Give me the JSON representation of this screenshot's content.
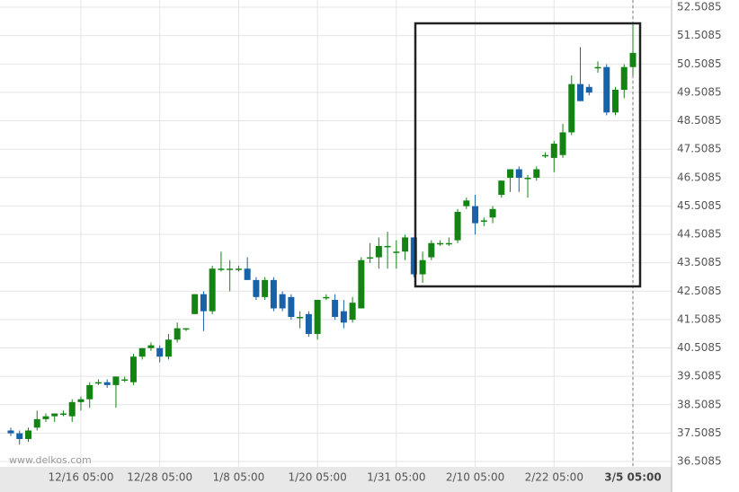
{
  "chart_data": {
    "type": "candlestick",
    "watermark": "www.delkos.com",
    "categories": [
      null,
      null,
      null,
      null,
      null,
      null,
      null,
      null,
      "12/16 05:00",
      null,
      null,
      null,
      null,
      null,
      null,
      null,
      null,
      "12/28 05:00",
      null,
      null,
      null,
      null,
      null,
      null,
      null,
      null,
      "1/8 05:00",
      null,
      null,
      null,
      null,
      null,
      null,
      null,
      null,
      "1/20 05:00",
      null,
      null,
      null,
      null,
      null,
      null,
      null,
      null,
      "1/31 05:00",
      null,
      null,
      null,
      null,
      null,
      null,
      null,
      null,
      "2/10 05:00",
      null,
      null,
      null,
      null,
      null,
      null,
      null,
      null,
      "2/22 05:00",
      null,
      null,
      null,
      null,
      null,
      null,
      null,
      null,
      "3/5 05:00"
    ],
    "open": [
      37.6,
      37.5,
      37.3,
      37.7,
      38.0,
      38.1,
      38.2,
      38.1,
      38.6,
      38.7,
      39.3,
      39.3,
      39.2,
      39.4,
      39.3,
      40.2,
      40.5,
      40.5,
      40.2,
      40.8,
      41.2,
      41.7,
      42.4,
      41.8,
      43.3,
      43.3,
      43.3,
      43.3,
      42.9,
      42.3,
      42.9,
      42.4,
      42.3,
      41.6,
      41.7,
      41.0,
      42.3,
      42.2,
      41.8,
      41.5,
      41.9,
      43.7,
      43.7,
      44.1,
      43.9,
      43.9,
      44.4,
      43.1,
      43.7,
      44.2,
      44.2,
      44.3,
      45.5,
      45.5,
      45.0,
      45.1,
      45.9,
      46.5,
      46.8,
      46.5,
      46.5,
      47.3,
      47.2,
      47.3,
      48.1,
      49.8,
      49.7,
      50.4,
      50.4,
      48.8,
      49.6,
      50.4
    ],
    "high": [
      37.7,
      37.6,
      37.7,
      38.3,
      38.2,
      38.2,
      38.3,
      38.7,
      38.8,
      39.3,
      39.4,
      39.4,
      39.5,
      39.5,
      40.3,
      40.5,
      40.7,
      40.6,
      41.0,
      41.4,
      41.2,
      42.4,
      42.5,
      43.4,
      43.9,
      43.6,
      43.4,
      43.7,
      43.0,
      43.0,
      43.0,
      42.5,
      42.4,
      41.8,
      41.8,
      42.2,
      42.4,
      42.4,
      42.2,
      42.3,
      43.7,
      44.2,
      44.4,
      44.6,
      44.3,
      44.5,
      44.4,
      43.9,
      44.3,
      44.3,
      44.4,
      45.4,
      45.8,
      45.9,
      45.1,
      45.5,
      46.4,
      46.8,
      46.9,
      46.6,
      46.9,
      47.4,
      47.8,
      48.4,
      50.1,
      51.1,
      49.8,
      50.6,
      50.5,
      49.7,
      50.5,
      51.9
    ],
    "low": [
      37.4,
      37.1,
      37.2,
      37.6,
      37.9,
      37.9,
      38.1,
      37.9,
      38.3,
      38.4,
      39.2,
      39.1,
      38.4,
      39.3,
      39.2,
      40.1,
      40.4,
      40.0,
      40.1,
      40.7,
      41.1,
      41.7,
      41.1,
      41.7,
      43.2,
      42.5,
      43.2,
      42.9,
      42.2,
      42.2,
      41.8,
      41.8,
      41.5,
      41.2,
      40.9,
      40.8,
      42.2,
      41.5,
      41.2,
      41.4,
      41.9,
      43.5,
      43.3,
      43.3,
      43.3,
      43.6,
      43.0,
      42.8,
      43.6,
      44.1,
      44.1,
      44.2,
      45.4,
      44.5,
      44.8,
      44.9,
      45.8,
      46.0,
      46.0,
      45.8,
      46.4,
      47.2,
      46.7,
      47.2,
      48.0,
      49.2,
      49.4,
      50.2,
      48.7,
      48.7,
      49.3,
      50.1
    ],
    "close": [
      37.5,
      37.3,
      37.6,
      38.0,
      38.1,
      38.2,
      38.2,
      38.6,
      38.7,
      39.2,
      39.3,
      39.2,
      39.5,
      39.4,
      40.2,
      40.5,
      40.6,
      40.2,
      40.8,
      41.2,
      41.2,
      42.4,
      41.8,
      43.3,
      43.3,
      43.3,
      43.3,
      42.9,
      42.3,
      42.9,
      41.9,
      41.9,
      41.6,
      41.6,
      41.0,
      42.2,
      42.3,
      41.6,
      41.4,
      42.1,
      43.6,
      43.7,
      44.1,
      44.1,
      43.9,
      44.4,
      43.1,
      43.6,
      44.2,
      44.2,
      44.2,
      45.3,
      45.7,
      44.9,
      45.0,
      45.4,
      46.4,
      46.8,
      46.5,
      46.5,
      46.8,
      47.3,
      47.7,
      48.1,
      49.8,
      49.2,
      49.5,
      50.4,
      48.8,
      49.6,
      50.4,
      50.9
    ],
    "up_color": "#138413",
    "down_color": "#1762a8",
    "ylim": [
      36.5085,
      52.5085
    ],
    "yticks": [
      36.5085,
      37.5085,
      38.5085,
      39.5085,
      40.5085,
      41.5085,
      42.5085,
      43.5085,
      44.5085,
      45.5085,
      46.5085,
      47.5085,
      48.5085,
      49.5085,
      50.5085,
      51.5085,
      52.5085
    ],
    "grid": true
  }
}
